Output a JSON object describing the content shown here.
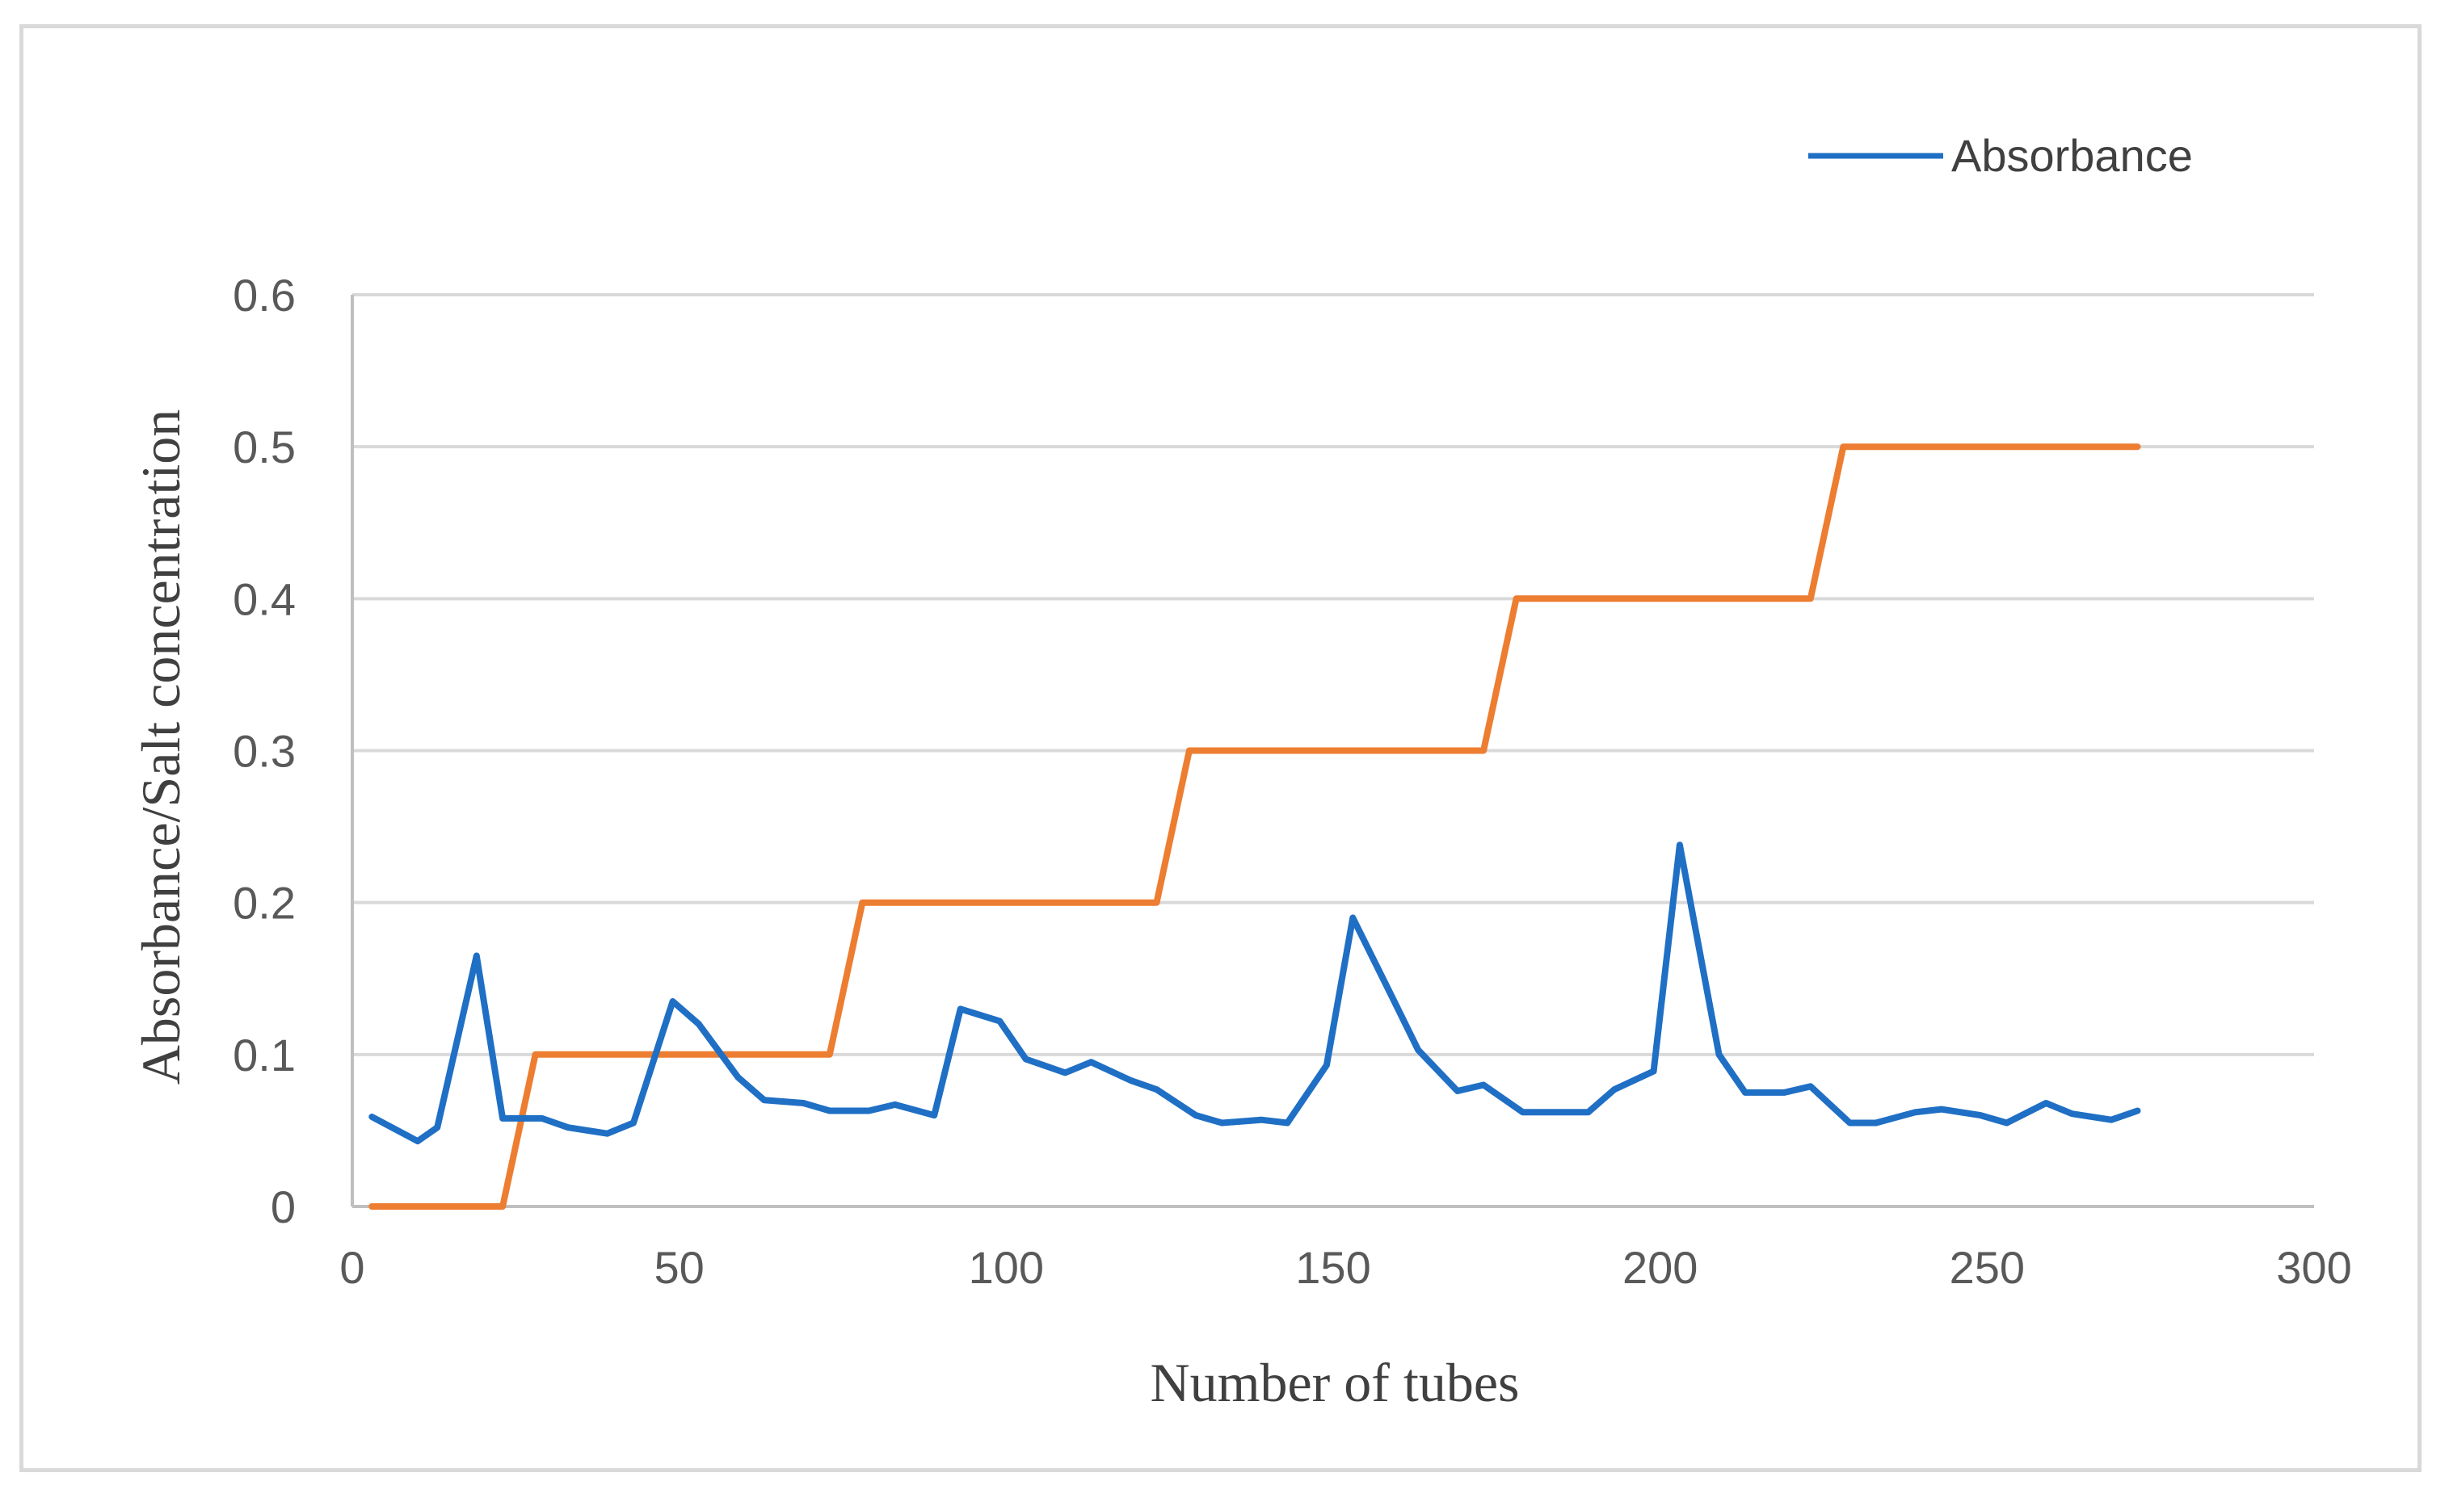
{
  "chart_data": {
    "type": "line",
    "title": "",
    "xlabel": "Number of tubes",
    "ylabel": "Absorbance/Salt  concentration",
    "xlim": [
      0,
      300
    ],
    "ylim": [
      0,
      0.6
    ],
    "xticks": [
      "0",
      "50",
      "100",
      "150",
      "200",
      "250",
      "300"
    ],
    "yticks": [
      "0",
      "0.1",
      "0.2",
      "0.3",
      "0.4",
      "0.5",
      "0.6"
    ],
    "grid": "horizontal",
    "legend_position": "top-right",
    "series": [
      {
        "name": "Absorbance",
        "color": "#1f6fc5",
        "x": [
          3,
          10,
          13,
          19,
          23,
          29,
          33,
          39,
          43,
          49,
          53,
          59,
          63,
          69,
          73,
          79,
          83,
          89,
          93,
          99,
          103,
          109,
          113,
          119,
          123,
          129,
          133,
          139,
          143,
          149,
          153,
          159,
          163,
          169,
          173,
          179,
          183,
          189,
          193,
          199,
          203,
          209,
          213,
          219,
          223,
          229,
          233,
          239,
          243,
          249,
          253,
          259,
          263,
          269,
          273
        ],
        "y": [
          0.059,
          0.043,
          0.052,
          0.165,
          0.058,
          0.058,
          0.052,
          0.048,
          0.055,
          0.135,
          0.12,
          0.085,
          0.07,
          0.068,
          0.063,
          0.063,
          0.067,
          0.06,
          0.13,
          0.122,
          0.097,
          0.088,
          0.095,
          0.083,
          0.077,
          0.06,
          0.055,
          0.057,
          0.055,
          0.093,
          0.19,
          0.138,
          0.103,
          0.076,
          0.08,
          0.062,
          0.062,
          0.062,
          0.077,
          0.089,
          0.238,
          0.1,
          0.075,
          0.075,
          0.079,
          0.055,
          0.055,
          0.062,
          0.064,
          0.06,
          0.055,
          0.068,
          0.061,
          0.057,
          0.063
        ]
      },
      {
        "color": "#ed7d31",
        "x": [
          3,
          23,
          28,
          73,
          78,
          123,
          128,
          173,
          178,
          223,
          228,
          273
        ],
        "y": [
          0,
          0,
          0.1,
          0.1,
          0.2,
          0.2,
          0.3,
          0.3,
          0.4,
          0.4,
          0.5,
          0.5
        ]
      }
    ]
  }
}
